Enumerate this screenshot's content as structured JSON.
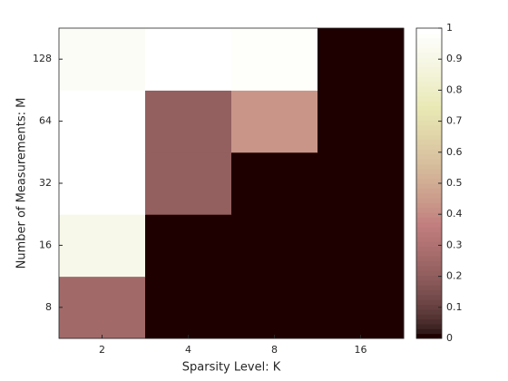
{
  "chart_data": {
    "type": "heatmap",
    "xlabel": "Sparsity Level: K",
    "ylabel": "Number of Measurements: M",
    "x_categories": [
      "2",
      "4",
      "8",
      "16"
    ],
    "y_categories": [
      "8",
      "16",
      "32",
      "64",
      "128"
    ],
    "values": [
      [
        0.25,
        0,
        0,
        0
      ],
      [
        0.92,
        0,
        0,
        0
      ],
      [
        1,
        0.2,
        0,
        0
      ],
      [
        1,
        0.2,
        0.43,
        0
      ],
      [
        0.97,
        1,
        0.98,
        0
      ]
    ],
    "colormap": "pink",
    "clim": [
      0,
      1
    ],
    "cticks": [
      0,
      0.1,
      0.2,
      0.3,
      0.4,
      0.5,
      0.6,
      0.7,
      0.8,
      0.9,
      1
    ]
  }
}
